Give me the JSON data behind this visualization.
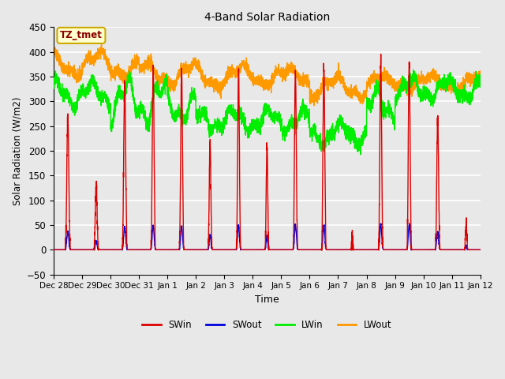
{
  "title": "4-Band Solar Radiation",
  "xlabel": "Time",
  "ylabel": "Solar Radiation (W/m2)",
  "ylim": [
    -50,
    450
  ],
  "yticks": [
    -50,
    0,
    50,
    100,
    150,
    200,
    250,
    300,
    350,
    400,
    450
  ],
  "annotation_text": "TZ_tmet",
  "annotation_bbox_facecolor": "#FFFFD0",
  "annotation_bbox_edgecolor": "#CCAA00",
  "colors": {
    "SWin": "#DD0000",
    "SWout": "#0000DD",
    "LWin": "#00EE00",
    "LWout": "#FF9900"
  },
  "background_color": "#E8E8E8",
  "axes_facecolor": "#E8E8E8",
  "grid_color": "white",
  "num_days": 15,
  "tick_labels": [
    "Dec 28",
    "Dec 29",
    "Dec 30",
    "Dec 31",
    "Jan 1",
    "Jan 2",
    "Jan 3",
    "Jan 4",
    "Jan 5",
    "Jan 6",
    "Jan 7",
    "Jan 8",
    "Jan 9",
    "Jan 10",
    "Jan 11",
    "Jan 12"
  ],
  "line_width": 1.0,
  "legend_entries": [
    "SWin",
    "SWout",
    "LWin",
    "LWout"
  ],
  "figsize": [
    6.4,
    4.8
  ],
  "dpi": 100
}
